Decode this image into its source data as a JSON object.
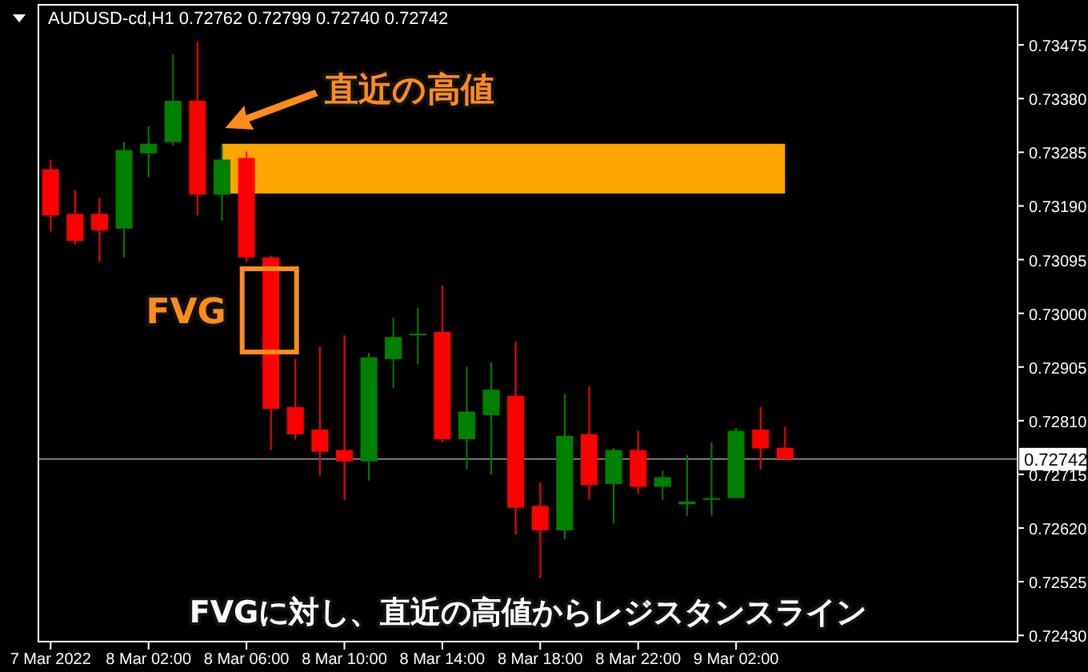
{
  "chart_data": {
    "type": "candlestick",
    "title": "AUDUSD-cd,H1  0.72762 0.72799 0.72740 0.72742",
    "x": [
      "2022-03-07T22:00",
      "2022-03-07T23:00",
      "2022-03-08T00:00",
      "2022-03-08T01:00",
      "2022-03-08T02:00",
      "2022-03-08T03:00",
      "2022-03-08T04:00",
      "2022-03-08T05:00",
      "2022-03-08T06:00",
      "2022-03-08T07:00",
      "2022-03-08T08:00",
      "2022-03-08T09:00",
      "2022-03-08T10:00",
      "2022-03-08T11:00",
      "2022-03-08T12:00",
      "2022-03-08T13:00",
      "2022-03-08T14:00",
      "2022-03-08T15:00",
      "2022-03-08T16:00",
      "2022-03-08T17:00",
      "2022-03-08T18:00",
      "2022-03-08T19:00",
      "2022-03-08T20:00",
      "2022-03-08T21:00",
      "2022-03-08T22:00",
      "2022-03-08T23:00",
      "2022-03-09T00:00",
      "2022-03-09T01:00",
      "2022-03-09T02:00",
      "2022-03-09T03:00",
      "2022-03-09T04:00"
    ],
    "ohlc": [
      [
        0.73255,
        0.73272,
        0.73145,
        0.73173
      ],
      [
        0.73176,
        0.73218,
        0.73122,
        0.73128
      ],
      [
        0.73176,
        0.73204,
        0.73091,
        0.73147
      ],
      [
        0.7315,
        0.73303,
        0.73099,
        0.73289
      ],
      [
        0.73283,
        0.73331,
        0.73241,
        0.733
      ],
      [
        0.73303,
        0.73458,
        0.73297,
        0.73376
      ],
      [
        0.73376,
        0.73481,
        0.73173,
        0.7321
      ],
      [
        0.7321,
        0.73297,
        0.73164,
        0.73272
      ],
      [
        0.73275,
        0.73286,
        0.73091,
        0.73099
      ],
      [
        0.73099,
        0.73102,
        0.72758,
        0.72831
      ],
      [
        0.72834,
        0.72919,
        0.72777,
        0.72786
      ],
      [
        0.72794,
        0.72941,
        0.72713,
        0.72755
      ],
      [
        0.72758,
        0.72961,
        0.7267,
        0.72738
      ],
      [
        0.72738,
        0.7293,
        0.72704,
        0.72922
      ],
      [
        0.72919,
        0.72992,
        0.72868,
        0.72958
      ],
      [
        0.72961,
        0.73009,
        0.7291,
        0.72964
      ],
      [
        0.72967,
        0.73049,
        0.72772,
        0.72777
      ],
      [
        0.72777,
        0.72905,
        0.72724,
        0.72826
      ],
      [
        0.7282,
        0.72913,
        0.72715,
        0.72865
      ],
      [
        0.72854,
        0.7295,
        0.72608,
        0.72656
      ],
      [
        0.72659,
        0.72701,
        0.72532,
        0.72616
      ],
      [
        0.72616,
        0.72857,
        0.726,
        0.72783
      ],
      [
        0.72786,
        0.72871,
        0.7267,
        0.72696
      ],
      [
        0.72698,
        0.72761,
        0.72628,
        0.72758
      ],
      [
        0.72758,
        0.72792,
        0.72681,
        0.72693
      ],
      [
        0.72693,
        0.72721,
        0.7267,
        0.7271
      ],
      [
        0.72662,
        0.72749,
        0.72642,
        0.72667
      ],
      [
        0.7267,
        0.72772,
        0.72642,
        0.72673
      ],
      [
        0.72673,
        0.72797,
        0.72673,
        0.72792
      ],
      [
        0.72794,
        0.72834,
        0.72724,
        0.72761
      ],
      [
        0.72762,
        0.72799,
        0.7274,
        0.72742
      ]
    ],
    "colors": [
      "#ff0000",
      "#ff0000",
      "#ff0000",
      "#008000",
      "#008000",
      "#008000",
      "#ff0000",
      "#008000",
      "#ff0000",
      "#ff0000",
      "#ff0000",
      "#ff0000",
      "#ff0000",
      "#008000",
      "#008000",
      "#008000",
      "#ff0000",
      "#008000",
      "#008000",
      "#ff0000",
      "#ff0000",
      "#008000",
      "#ff0000",
      "#008000",
      "#ff0000",
      "#008000",
      "#008000",
      "#008000",
      "#008000",
      "#ff0000",
      "#ff0000"
    ],
    "xlim": [
      "2022-03-07T21:30",
      "2022-03-09T13:30"
    ],
    "xticks": [
      {
        "value": "2022-03-07T22:00",
        "label": "7 Mar 2022"
      },
      {
        "value": "2022-03-08T02:00",
        "label": "8 Mar 02:00"
      },
      {
        "value": "2022-03-08T06:00",
        "label": "8 Mar 06:00"
      },
      {
        "value": "2022-03-08T10:00",
        "label": "8 Mar 10:00"
      },
      {
        "value": "2022-03-08T14:00",
        "label": "8 Mar 14:00"
      },
      {
        "value": "2022-03-08T18:00",
        "label": "8 Mar 18:00"
      },
      {
        "value": "2022-03-08T22:00",
        "label": "8 Mar 22:00"
      },
      {
        "value": "2022-03-09T02:00",
        "label": "9 Mar 02:00"
      }
    ],
    "ylim": [
      0.72419,
      0.73546
    ],
    "yticks": [
      {
        "value": 0.73475,
        "label": "0.73475"
      },
      {
        "value": 0.7338,
        "label": "0.73380"
      },
      {
        "value": 0.73285,
        "label": "0.73285"
      },
      {
        "value": 0.7319,
        "label": "0.73190"
      },
      {
        "value": 0.73095,
        "label": "0.73095"
      },
      {
        "value": 0.73,
        "label": "0.73000"
      },
      {
        "value": 0.72905,
        "label": "0.72905"
      },
      {
        "value": 0.7281,
        "label": "0.72810"
      },
      {
        "value": 0.72715,
        "label": "0.72715"
      },
      {
        "value": 0.7262,
        "label": "0.72620"
      },
      {
        "value": 0.72525,
        "label": "0.72525"
      },
      {
        "value": 0.7243,
        "label": "0.72430"
      }
    ],
    "ref_lines": [
      {
        "axis": "y",
        "value": 0.72742,
        "label": "0.72742",
        "color": "#808080"
      }
    ],
    "bands": [
      {
        "axis": "y",
        "from": 0.73212,
        "to": 0.733,
        "color": "#ffa500"
      }
    ],
    "annotations": [
      "直近の高値",
      "FVG",
      "FVGに対し、直近の高値からレジスタンスライン"
    ]
  }
}
